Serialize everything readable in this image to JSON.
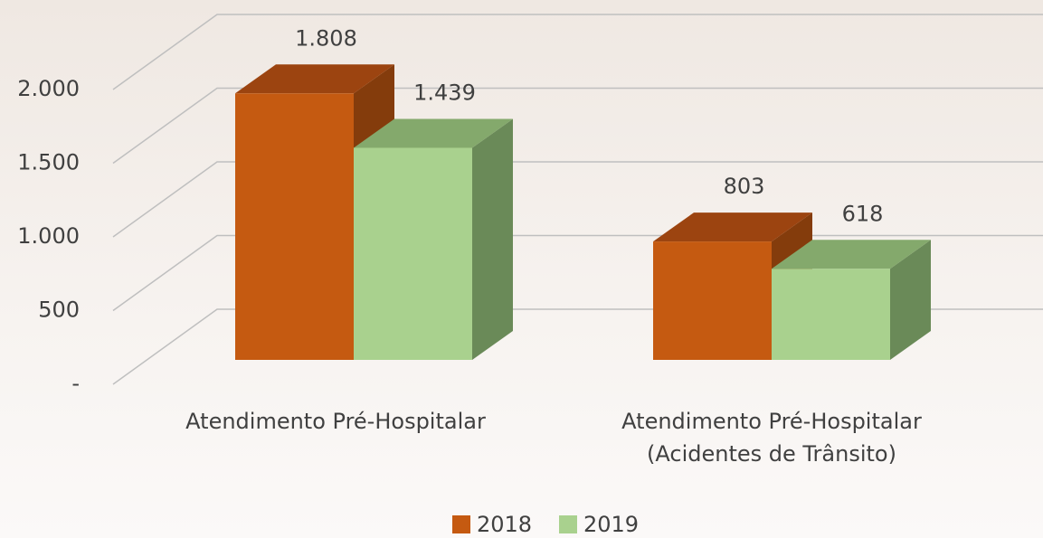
{
  "chart_data": {
    "type": "bar3d",
    "categories": [
      [
        "Atendimento Pré-Hospitalar"
      ],
      [
        "Atendimento Pré-Hospitalar",
        "(Acidentes de Trânsito)"
      ]
    ],
    "series": [
      {
        "name": "2018",
        "color": "#c55a11",
        "top_color": "#9c4410",
        "side_color": "#843c0c",
        "values": [
          1808,
          803
        ],
        "value_labels": [
          "1.808",
          "803"
        ]
      },
      {
        "name": "2019",
        "color": "#a9d18e",
        "top_color": "#84a96c",
        "side_color": "#6a8a58",
        "values": [
          1439,
          618
        ],
        "value_labels": [
          "1.439",
          "618"
        ]
      }
    ],
    "ylim": [
      0,
      2000
    ],
    "yticks": [
      {
        "value": 0,
        "label": "-"
      },
      500,
      {
        "value": 1000,
        "label": "1.000"
      },
      {
        "value": 1500,
        "label": "1.500"
      },
      {
        "value": 2000,
        "label": "2.000"
      }
    ],
    "grid": true,
    "legend": "bottom"
  }
}
